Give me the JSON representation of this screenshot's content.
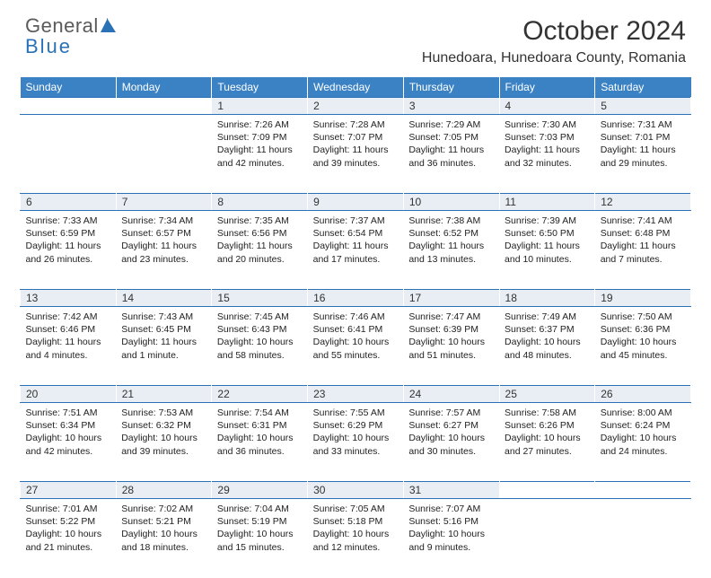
{
  "brand": {
    "word1": "General",
    "word2": "Blue"
  },
  "title": "October 2024",
  "location": "Hunedoara, Hunedoara County, Romania",
  "colors": {
    "header_bg": "#3b82c4",
    "header_fg": "#ffffff",
    "daynum_bg": "#e8eef3",
    "rule": "#2a72b5",
    "text": "#222222"
  },
  "weekdays": [
    "Sunday",
    "Monday",
    "Tuesday",
    "Wednesday",
    "Thursday",
    "Friday",
    "Saturday"
  ],
  "weeks": [
    [
      null,
      null,
      {
        "n": "1",
        "sr": "7:26 AM",
        "ss": "7:09 PM",
        "d": "11 hours and 42 minutes."
      },
      {
        "n": "2",
        "sr": "7:28 AM",
        "ss": "7:07 PM",
        "d": "11 hours and 39 minutes."
      },
      {
        "n": "3",
        "sr": "7:29 AM",
        "ss": "7:05 PM",
        "d": "11 hours and 36 minutes."
      },
      {
        "n": "4",
        "sr": "7:30 AM",
        "ss": "7:03 PM",
        "d": "11 hours and 32 minutes."
      },
      {
        "n": "5",
        "sr": "7:31 AM",
        "ss": "7:01 PM",
        "d": "11 hours and 29 minutes."
      }
    ],
    [
      {
        "n": "6",
        "sr": "7:33 AM",
        "ss": "6:59 PM",
        "d": "11 hours and 26 minutes."
      },
      {
        "n": "7",
        "sr": "7:34 AM",
        "ss": "6:57 PM",
        "d": "11 hours and 23 minutes."
      },
      {
        "n": "8",
        "sr": "7:35 AM",
        "ss": "6:56 PM",
        "d": "11 hours and 20 minutes."
      },
      {
        "n": "9",
        "sr": "7:37 AM",
        "ss": "6:54 PM",
        "d": "11 hours and 17 minutes."
      },
      {
        "n": "10",
        "sr": "7:38 AM",
        "ss": "6:52 PM",
        "d": "11 hours and 13 minutes."
      },
      {
        "n": "11",
        "sr": "7:39 AM",
        "ss": "6:50 PM",
        "d": "11 hours and 10 minutes."
      },
      {
        "n": "12",
        "sr": "7:41 AM",
        "ss": "6:48 PM",
        "d": "11 hours and 7 minutes."
      }
    ],
    [
      {
        "n": "13",
        "sr": "7:42 AM",
        "ss": "6:46 PM",
        "d": "11 hours and 4 minutes."
      },
      {
        "n": "14",
        "sr": "7:43 AM",
        "ss": "6:45 PM",
        "d": "11 hours and 1 minute."
      },
      {
        "n": "15",
        "sr": "7:45 AM",
        "ss": "6:43 PM",
        "d": "10 hours and 58 minutes."
      },
      {
        "n": "16",
        "sr": "7:46 AM",
        "ss": "6:41 PM",
        "d": "10 hours and 55 minutes."
      },
      {
        "n": "17",
        "sr": "7:47 AM",
        "ss": "6:39 PM",
        "d": "10 hours and 51 minutes."
      },
      {
        "n": "18",
        "sr": "7:49 AM",
        "ss": "6:37 PM",
        "d": "10 hours and 48 minutes."
      },
      {
        "n": "19",
        "sr": "7:50 AM",
        "ss": "6:36 PM",
        "d": "10 hours and 45 minutes."
      }
    ],
    [
      {
        "n": "20",
        "sr": "7:51 AM",
        "ss": "6:34 PM",
        "d": "10 hours and 42 minutes."
      },
      {
        "n": "21",
        "sr": "7:53 AM",
        "ss": "6:32 PM",
        "d": "10 hours and 39 minutes."
      },
      {
        "n": "22",
        "sr": "7:54 AM",
        "ss": "6:31 PM",
        "d": "10 hours and 36 minutes."
      },
      {
        "n": "23",
        "sr": "7:55 AM",
        "ss": "6:29 PM",
        "d": "10 hours and 33 minutes."
      },
      {
        "n": "24",
        "sr": "7:57 AM",
        "ss": "6:27 PM",
        "d": "10 hours and 30 minutes."
      },
      {
        "n": "25",
        "sr": "7:58 AM",
        "ss": "6:26 PM",
        "d": "10 hours and 27 minutes."
      },
      {
        "n": "26",
        "sr": "8:00 AM",
        "ss": "6:24 PM",
        "d": "10 hours and 24 minutes."
      }
    ],
    [
      {
        "n": "27",
        "sr": "7:01 AM",
        "ss": "5:22 PM",
        "d": "10 hours and 21 minutes."
      },
      {
        "n": "28",
        "sr": "7:02 AM",
        "ss": "5:21 PM",
        "d": "10 hours and 18 minutes."
      },
      {
        "n": "29",
        "sr": "7:04 AM",
        "ss": "5:19 PM",
        "d": "10 hours and 15 minutes."
      },
      {
        "n": "30",
        "sr": "7:05 AM",
        "ss": "5:18 PM",
        "d": "10 hours and 12 minutes."
      },
      {
        "n": "31",
        "sr": "7:07 AM",
        "ss": "5:16 PM",
        "d": "10 hours and 9 minutes."
      },
      null,
      null
    ]
  ],
  "labels": {
    "sunrise": "Sunrise: ",
    "sunset": "Sunset: ",
    "daylight": "Daylight: "
  }
}
